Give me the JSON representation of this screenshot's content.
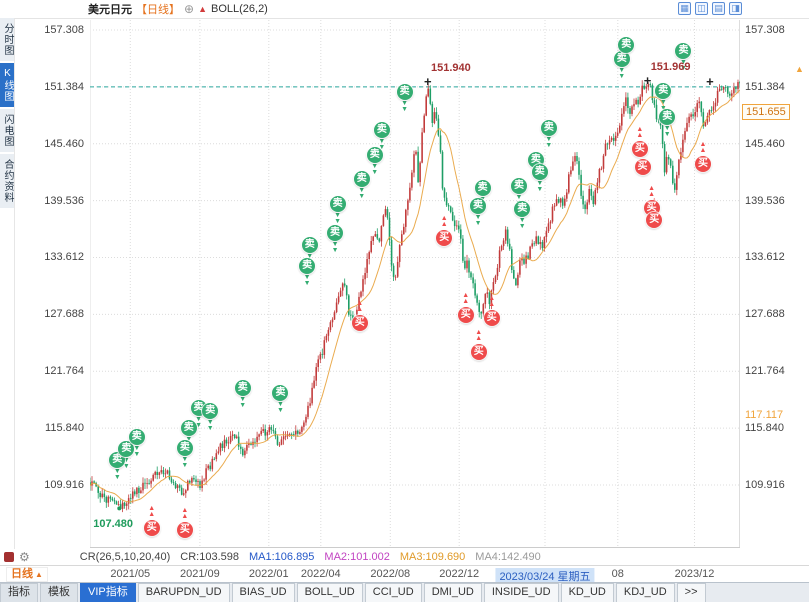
{
  "header": {
    "symbol": "美元日元",
    "period_tag": "【日线】",
    "add_icon": "⊕",
    "indicator_icon": "▲",
    "indicator": "BOLL(26,2)",
    "toolbar_icons": [
      {
        "name": "grid-layout-icon",
        "glyph": "▦"
      },
      {
        "name": "dual-pane-icon",
        "glyph": "◫"
      },
      {
        "name": "rows-layout-icon",
        "glyph": "▤"
      },
      {
        "name": "split-pane-icon",
        "glyph": "◨"
      }
    ]
  },
  "sidebar": {
    "tabs": [
      {
        "label": "分时图",
        "active": false
      },
      {
        "label": "K线图",
        "active": true
      },
      {
        "label": "闪电图",
        "active": false
      },
      {
        "label": "合约资料",
        "active": false
      }
    ]
  },
  "chart_data": {
    "type": "candlestick",
    "title": "美元日元 日线",
    "indicator": "BOLL(26,2)",
    "y_ticks": [
      "157.308",
      "151.384",
      "145.460",
      "139.536",
      "133.612",
      "127.688",
      "121.764",
      "115.840",
      "109.916"
    ],
    "y_range": [
      103.35,
      158.35
    ],
    "x_ticks": [
      {
        "label": "2021/05",
        "t": 0.062
      },
      {
        "label": "2021/09",
        "t": 0.169
      },
      {
        "label": "2022/01",
        "t": 0.275
      },
      {
        "label": "2022/04",
        "t": 0.355
      },
      {
        "label": "2022/08",
        "t": 0.462
      },
      {
        "label": "2022/12",
        "t": 0.568
      },
      {
        "label": "2023/03/24 星期五",
        "t": 0.7,
        "highlight": true
      },
      {
        "label": "08",
        "t": 0.812
      },
      {
        "label": "2023/12",
        "t": 0.93
      }
    ],
    "num_candles": 320,
    "colors": {
      "up": "#c23b3b",
      "down": "#1e9e66",
      "ma": "#e8a23c",
      "grid": "#dcdcdc",
      "dashed_line": "#2aa79e"
    },
    "reference_line": {
      "value": 151.384
    },
    "price_path": [
      [
        0.0,
        110.2
      ],
      [
        0.015,
        109.0
      ],
      [
        0.03,
        108.1
      ],
      [
        0.045,
        107.48
      ],
      [
        0.062,
        108.9
      ],
      [
        0.08,
        109.6
      ],
      [
        0.1,
        110.9
      ],
      [
        0.115,
        111.5
      ],
      [
        0.13,
        109.8
      ],
      [
        0.142,
        109.3
      ],
      [
        0.155,
        110.4
      ],
      [
        0.169,
        110.0
      ],
      [
        0.182,
        111.6
      ],
      [
        0.195,
        113.4
      ],
      [
        0.21,
        114.4
      ],
      [
        0.222,
        115.3
      ],
      [
        0.235,
        112.9
      ],
      [
        0.248,
        114.3
      ],
      [
        0.262,
        115.6
      ],
      [
        0.272,
        115.2
      ],
      [
        0.28,
        116.1
      ],
      [
        0.29,
        114.1
      ],
      [
        0.3,
        115.2
      ],
      [
        0.315,
        115.0
      ],
      [
        0.328,
        116.4
      ],
      [
        0.34,
        119.0
      ],
      [
        0.35,
        122.4
      ],
      [
        0.358,
        124.0
      ],
      [
        0.368,
        126.0
      ],
      [
        0.378,
        128.8
      ],
      [
        0.386,
        130.2
      ],
      [
        0.392,
        131.1
      ],
      [
        0.399,
        127.4
      ],
      [
        0.408,
        127.2
      ],
      [
        0.418,
        130.9
      ],
      [
        0.428,
        133.8
      ],
      [
        0.436,
        136.2
      ],
      [
        0.443,
        135.0
      ],
      [
        0.45,
        137.2
      ],
      [
        0.456,
        139.0
      ],
      [
        0.463,
        133.4
      ],
      [
        0.469,
        131.2
      ],
      [
        0.477,
        135.2
      ],
      [
        0.484,
        137.4
      ],
      [
        0.49,
        139.6
      ],
      [
        0.496,
        143.2
      ],
      [
        0.501,
        144.8
      ],
      [
        0.505,
        141.3
      ],
      [
        0.51,
        146.0
      ],
      [
        0.516,
        149.3
      ],
      [
        0.52,
        151.8
      ],
      [
        0.526,
        147.6
      ],
      [
        0.531,
        148.9
      ],
      [
        0.537,
        146.3
      ],
      [
        0.543,
        140.6
      ],
      [
        0.549,
        139.0
      ],
      [
        0.556,
        138.3
      ],
      [
        0.563,
        136.3
      ],
      [
        0.569,
        137.0
      ],
      [
        0.575,
        131.6
      ],
      [
        0.581,
        133.2
      ],
      [
        0.588,
        130.9
      ],
      [
        0.595,
        129.3
      ],
      [
        0.601,
        127.4
      ],
      [
        0.608,
        130.1
      ],
      [
        0.615,
        128.9
      ],
      [
        0.623,
        131.6
      ],
      [
        0.631,
        134.4
      ],
      [
        0.64,
        136.7
      ],
      [
        0.648,
        133.1
      ],
      [
        0.654,
        130.6
      ],
      [
        0.661,
        132.9
      ],
      [
        0.67,
        133.4
      ],
      [
        0.68,
        134.8
      ],
      [
        0.688,
        135.6
      ],
      [
        0.695,
        134.4
      ],
      [
        0.703,
        136.1
      ],
      [
        0.712,
        138.6
      ],
      [
        0.72,
        139.8
      ],
      [
        0.729,
        139.2
      ],
      [
        0.738,
        142.3
      ],
      [
        0.747,
        144.8
      ],
      [
        0.754,
        141.2
      ],
      [
        0.76,
        138.3
      ],
      [
        0.768,
        140.8
      ],
      [
        0.775,
        139.4
      ],
      [
        0.783,
        142.1
      ],
      [
        0.792,
        144.9
      ],
      [
        0.8,
        146.3
      ],
      [
        0.808,
        146.0
      ],
      [
        0.818,
        148.6
      ],
      [
        0.825,
        149.9
      ],
      [
        0.83,
        148.9
      ],
      [
        0.836,
        150.1
      ],
      [
        0.842,
        149.6
      ],
      [
        0.848,
        150.9
      ],
      [
        0.855,
        151.5
      ],
      [
        0.862,
        151.9
      ],
      [
        0.868,
        149.2
      ],
      [
        0.875,
        147.6
      ],
      [
        0.88,
        146.9
      ],
      [
        0.884,
        142.4
      ],
      [
        0.889,
        144.6
      ],
      [
        0.894,
        142.6
      ],
      [
        0.899,
        140.7
      ],
      [
        0.906,
        143.6
      ],
      [
        0.913,
        146.1
      ],
      [
        0.92,
        147.9
      ],
      [
        0.928,
        148.4
      ],
      [
        0.935,
        150.2
      ],
      [
        0.945,
        146.9
      ],
      [
        0.955,
        149.0
      ],
      [
        0.965,
        150.6
      ],
      [
        0.975,
        151.3
      ],
      [
        0.985,
        150.8
      ],
      [
        1.0,
        151.6
      ]
    ],
    "markers": [
      {
        "t": 0.52,
        "price": 151.94,
        "label": "151.940"
      },
      {
        "t": 0.858,
        "price": 151.969,
        "label": "151.969"
      },
      {
        "t": 0.954,
        "price": 151.88,
        "label": ""
      }
    ],
    "low_point_label": {
      "text": "107.480",
      "t": 0.045,
      "price": 107.48
    },
    "last_price_box": {
      "text": "151.655"
    },
    "band_label": {
      "text": "117.117",
      "price": 117.117
    },
    "edge_arrow": "▲",
    "signal_labels": {
      "sell": "卖",
      "buy": "买"
    },
    "arrow_glyphs": {
      "down": "▼",
      "up": "▲"
    },
    "signals": [
      {
        "type": "sell",
        "t": 0.042,
        "price": 112.5
      },
      {
        "type": "sell",
        "t": 0.056,
        "price": 113.7
      },
      {
        "type": "sell",
        "t": 0.072,
        "price": 114.9
      },
      {
        "type": "sell",
        "t": 0.146,
        "price": 113.8
      },
      {
        "type": "sell",
        "t": 0.152,
        "price": 115.9
      },
      {
        "type": "sell",
        "t": 0.167,
        "price": 117.9
      },
      {
        "type": "sell",
        "t": 0.185,
        "price": 117.6
      },
      {
        "type": "sell",
        "t": 0.235,
        "price": 120.0
      },
      {
        "type": "sell",
        "t": 0.293,
        "price": 119.5
      },
      {
        "type": "sell",
        "t": 0.334,
        "price": 132.7
      },
      {
        "type": "sell",
        "t": 0.338,
        "price": 134.9
      },
      {
        "type": "sell",
        "t": 0.377,
        "price": 136.2
      },
      {
        "type": "sell",
        "t": 0.381,
        "price": 139.2
      },
      {
        "type": "sell",
        "t": 0.418,
        "price": 141.8
      },
      {
        "type": "sell",
        "t": 0.438,
        "price": 144.3
      },
      {
        "type": "sell",
        "t": 0.449,
        "price": 146.9
      },
      {
        "type": "sell",
        "t": 0.484,
        "price": 150.8
      },
      {
        "type": "sell",
        "t": 0.597,
        "price": 139.0
      },
      {
        "type": "sell",
        "t": 0.604,
        "price": 140.9
      },
      {
        "type": "sell",
        "t": 0.66,
        "price": 141.1
      },
      {
        "type": "sell",
        "t": 0.665,
        "price": 138.7
      },
      {
        "type": "sell",
        "t": 0.686,
        "price": 143.8
      },
      {
        "type": "sell",
        "t": 0.692,
        "price": 142.5
      },
      {
        "type": "sell",
        "t": 0.706,
        "price": 147.1
      },
      {
        "type": "sell",
        "t": 0.818,
        "price": 154.3
      },
      {
        "type": "sell",
        "t": 0.825,
        "price": 155.7
      },
      {
        "type": "sell",
        "t": 0.882,
        "price": 151.0
      },
      {
        "type": "sell",
        "t": 0.888,
        "price": 148.2
      },
      {
        "type": "sell",
        "t": 0.913,
        "price": 155.1
      },
      {
        "type": "buy",
        "t": 0.095,
        "price": 105.4
      },
      {
        "type": "buy",
        "t": 0.146,
        "price": 105.2
      },
      {
        "type": "buy",
        "t": 0.415,
        "price": 126.8
      },
      {
        "type": "buy",
        "t": 0.545,
        "price": 135.6
      },
      {
        "type": "buy",
        "t": 0.578,
        "price": 127.6
      },
      {
        "type": "buy",
        "t": 0.598,
        "price": 123.8
      },
      {
        "type": "buy",
        "t": 0.618,
        "price": 127.3
      },
      {
        "type": "buy",
        "t": 0.846,
        "price": 144.9
      },
      {
        "type": "buy",
        "t": 0.85,
        "price": 143.0
      },
      {
        "type": "buy",
        "t": 0.864,
        "price": 138.8
      },
      {
        "type": "buy",
        "t": 0.868,
        "price": 137.5
      },
      {
        "type": "buy",
        "t": 0.943,
        "price": 143.3
      }
    ]
  },
  "status_bar": {
    "gear_icon": "⚙",
    "items": [
      {
        "text": "CR(26,5,10,20,40)",
        "color": "#444444"
      },
      {
        "text": "CR:103.598",
        "color": "#444444"
      },
      {
        "text": "MA1:106.895",
        "color": "#2458c8"
      },
      {
        "text": "MA2:101.002",
        "color": "#c244c2"
      },
      {
        "text": "MA3:109.690",
        "color": "#e09a28"
      },
      {
        "text": "MA4:142.490",
        "color": "#9a9a9a"
      }
    ]
  },
  "footer": {
    "period_label": "日线",
    "period_arrow": "▲",
    "tabs": [
      {
        "label": "指标",
        "style": "gray"
      },
      {
        "label": "模板",
        "style": "gray"
      },
      {
        "label": "VIP指标",
        "style": "active"
      },
      {
        "label": "BARUPDN_UD",
        "style": "ud"
      },
      {
        "label": "BIAS_UD",
        "style": "ud"
      },
      {
        "label": "BOLL_UD",
        "style": "ud"
      },
      {
        "label": "CCI_UD",
        "style": "ud"
      },
      {
        "label": "DMI_UD",
        "style": "ud"
      },
      {
        "label": "INSIDE_UD",
        "style": "ud"
      },
      {
        "label": "KD_UD",
        "style": "ud"
      },
      {
        "label": "KDJ_UD",
        "style": "ud"
      },
      {
        "label": ">>",
        "style": "ud"
      }
    ]
  }
}
